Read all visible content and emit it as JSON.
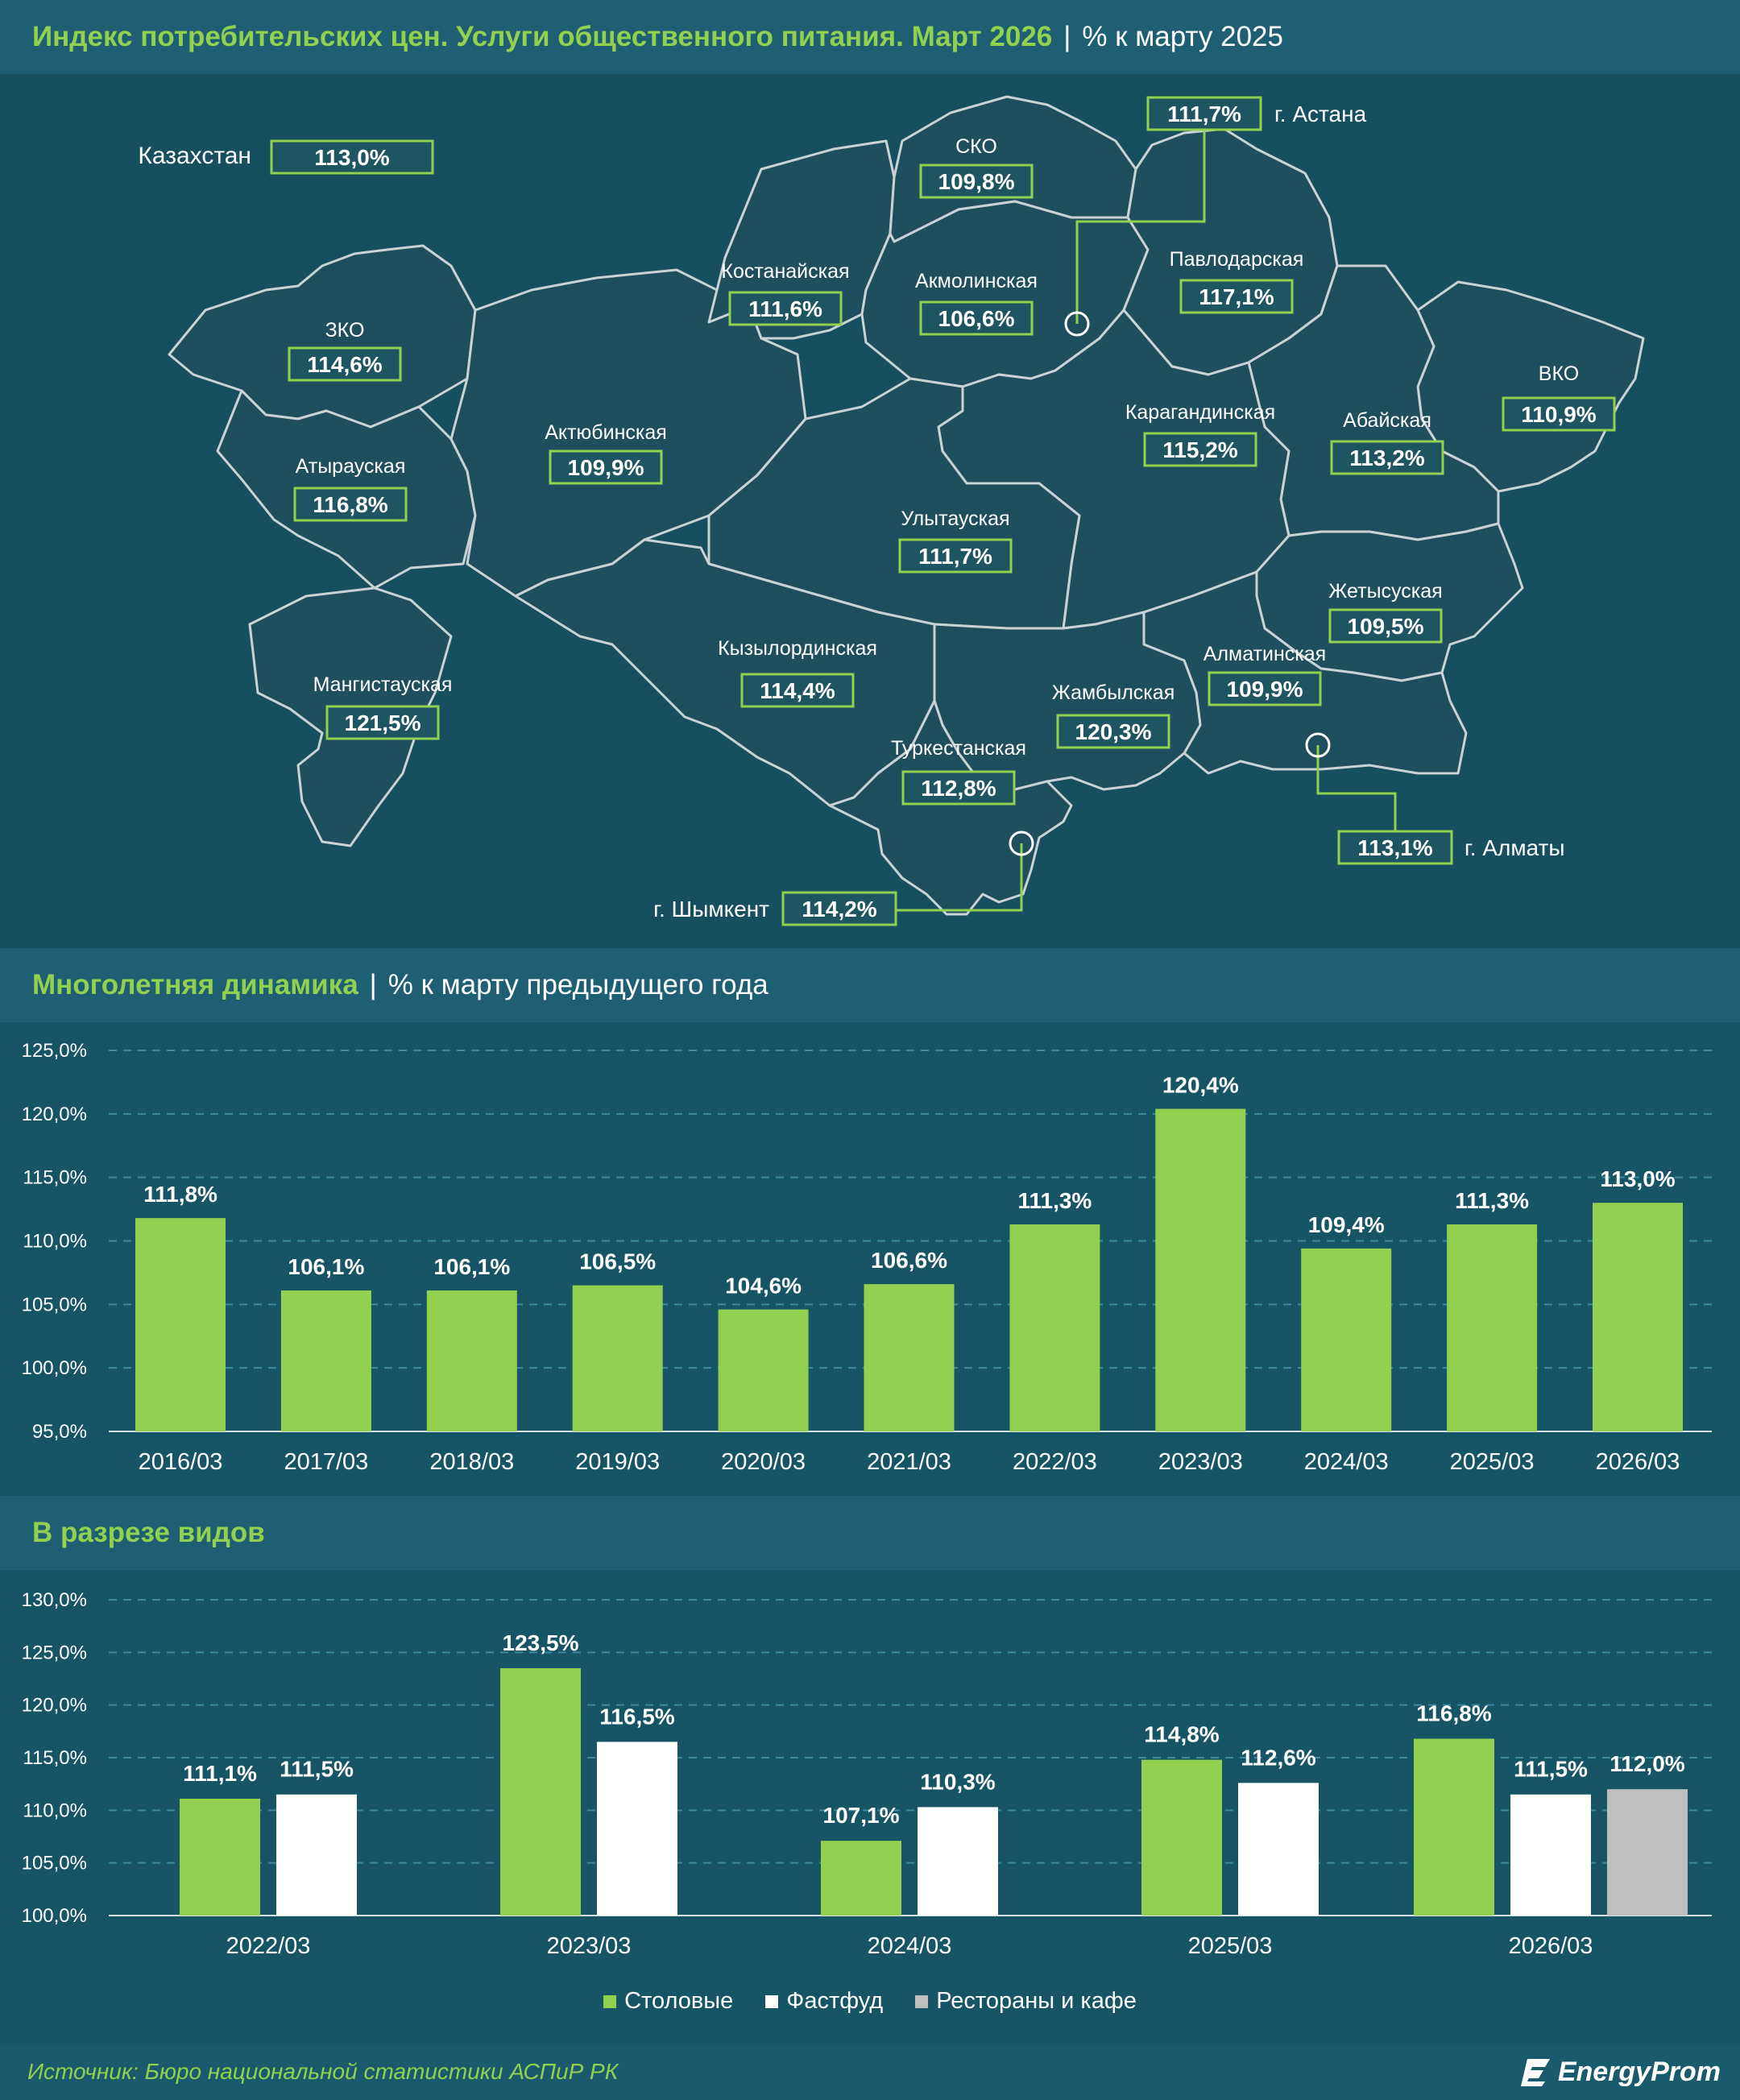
{
  "header": {
    "title": "Индекс потребительских цен. Услуги общественного питания. Март 2026",
    "subtitle": "% к марту 2025"
  },
  "map": {
    "country_label": "Казахстан",
    "country_value": "113,0%",
    "regions": [
      {
        "id": "zko",
        "name": "ЗКО",
        "value": "114,6%"
      },
      {
        "id": "atyrau",
        "name": "Атырауская",
        "value": "116,8%"
      },
      {
        "id": "mangystau",
        "name": "Мангистауская",
        "value": "121,5%"
      },
      {
        "id": "aktobe",
        "name": "Актюбинская",
        "value": "109,9%"
      },
      {
        "id": "kostanay",
        "name": "Костанайская",
        "value": "111,6%"
      },
      {
        "id": "sko",
        "name": "СКО",
        "value": "109,8%"
      },
      {
        "id": "akmola",
        "name": "Акмолинская",
        "value": "106,6%"
      },
      {
        "id": "pavlodar",
        "name": "Павлодарская",
        "value": "117,1%"
      },
      {
        "id": "vko",
        "name": "ВКО",
        "value": "110,9%"
      },
      {
        "id": "karaganda",
        "name": "Карагандинская",
        "value": "115,2%"
      },
      {
        "id": "abay",
        "name": "Абайская",
        "value": "113,2%"
      },
      {
        "id": "ulytau",
        "name": "Улытауская",
        "value": "111,7%"
      },
      {
        "id": "zhetysu",
        "name": "Жетысуская",
        "value": "109,5%"
      },
      {
        "id": "almaty-obl",
        "name": "Алматинская",
        "value": "109,9%"
      },
      {
        "id": "kyzylorda",
        "name": "Кызылординская",
        "value": "114,4%"
      },
      {
        "id": "zhambyl",
        "name": "Жамбылская",
        "value": "120,3%"
      },
      {
        "id": "turkestan",
        "name": "Туркестанская",
        "value": "112,8%"
      }
    ],
    "cities": [
      {
        "id": "astana",
        "name": "г. Астана",
        "value": "111,7%"
      },
      {
        "id": "almaty",
        "name": "г. Алматы",
        "value": "113,1%"
      },
      {
        "id": "shymkent",
        "name": "г. Шымкент",
        "value": "114,2%"
      }
    ]
  },
  "section2": {
    "title": "Многолетняя динамика",
    "subtitle": "% к марту предыдущего года"
  },
  "section3": {
    "title": "В разрезе видов"
  },
  "chart_data": [
    {
      "type": "bar",
      "categories": [
        "2016/03",
        "2017/03",
        "2018/03",
        "2019/03",
        "2020/03",
        "2021/03",
        "2022/03",
        "2023/03",
        "2024/03",
        "2025/03",
        "2026/03"
      ],
      "values": [
        111.8,
        106.1,
        106.1,
        106.5,
        104.6,
        106.6,
        111.3,
        120.4,
        109.4,
        111.3,
        113.0
      ],
      "value_labels": [
        "111,8%",
        "106,1%",
        "106,1%",
        "106,5%",
        "104,6%",
        "106,6%",
        "111,3%",
        "120,4%",
        "109,4%",
        "111,3%",
        "113,0%"
      ],
      "ylim": [
        95,
        125
      ],
      "yticks": [
        "95,0%",
        "100,0%",
        "105,0%",
        "110,0%",
        "115,0%",
        "120,0%",
        "125,0%"
      ],
      "grid": true,
      "color": "#92d050"
    },
    {
      "type": "bar",
      "categories": [
        "2022/03",
        "2023/03",
        "2024/03",
        "2025/03",
        "2026/03"
      ],
      "series": [
        {
          "name": "Столовые",
          "color": "#92d050",
          "values": [
            111.1,
            123.5,
            107.1,
            114.8,
            116.8
          ],
          "value_labels": [
            "111,1%",
            "123,5%",
            "107,1%",
            "114,8%",
            "116,8%"
          ]
        },
        {
          "name": "Фастфуд",
          "color": "#ffffff",
          "values": [
            111.5,
            116.5,
            110.3,
            112.6,
            111.5
          ],
          "value_labels": [
            "111,5%",
            "116,5%",
            "110,3%",
            "112,6%",
            "111,5%"
          ]
        },
        {
          "name": "Рестораны и кафе",
          "color": "#bfbfbf",
          "values": [
            null,
            null,
            null,
            null,
            112.0
          ],
          "value_labels": [
            "",
            "",
            "",
            "",
            "112,0%"
          ]
        }
      ],
      "ylim": [
        100,
        130
      ],
      "yticks": [
        "100,0%",
        "105,0%",
        "110,0%",
        "115,0%",
        "120,0%",
        "125,0%",
        "130,0%"
      ],
      "grid": true,
      "legend": "bottom-center"
    }
  ],
  "footer": {
    "source": "Источник: Бюро национальной статистики АСПиР РК",
    "logo_text": "EnergyProm"
  },
  "colors": {
    "accent": "#92d050",
    "background": "#175466",
    "band": "#1e5f74",
    "region_fill": "#1f4e5e",
    "region_stroke": "#c9d3d6"
  }
}
